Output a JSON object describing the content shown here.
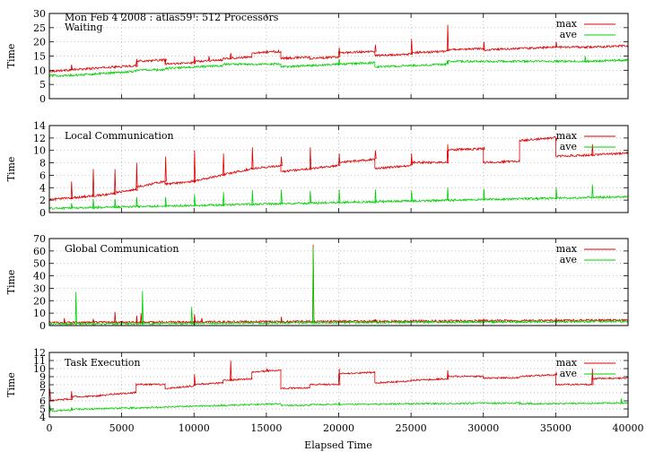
{
  "page": {
    "header": "Mon Feb 4 2008 : atlas59 : 512 Processors",
    "xlabel": "Elapsed Time"
  },
  "colors": {
    "max": "#e00000",
    "ave": "#00d000"
  },
  "chart_data": [
    {
      "type": "line",
      "title": "Waiting",
      "ylabel": "Time",
      "xlim": [
        0,
        40000
      ],
      "ylim": [
        0,
        30
      ],
      "yticks": [
        0,
        5,
        10,
        15,
        20,
        25,
        30
      ],
      "xticks": [
        0,
        5000,
        10000,
        15000,
        20000,
        25000,
        30000,
        35000,
        40000
      ],
      "legend": "top-right",
      "series": [
        {
          "name": "max",
          "segments": [
            [
              0,
              1500,
              9.5,
              10
            ],
            [
              1500,
              3000,
              10,
              10.5
            ],
            [
              3000,
              4500,
              10.5,
              11
            ],
            [
              4500,
              6000,
              11,
              11.5
            ],
            [
              6000,
              8000,
              13,
              13.5
            ],
            [
              8000,
              10000,
              12,
              12.5
            ],
            [
              10000,
              12000,
              13,
              13.5
            ],
            [
              12000,
              14000,
              14,
              14.5
            ],
            [
              14000,
              16000,
              16,
              16.5
            ],
            [
              16000,
              18000,
              14,
              14.5
            ],
            [
              18000,
              20000,
              14,
              14.5
            ],
            [
              20000,
              22500,
              16,
              16.5
            ],
            [
              22500,
              25000,
              15,
              15.5
            ],
            [
              25000,
              27500,
              16,
              16.5
            ],
            [
              27500,
              30000,
              17,
              17.5
            ],
            [
              30000,
              32500,
              17,
              17.5
            ],
            [
              32500,
              35000,
              17.5,
              18
            ],
            [
              35000,
              37500,
              18,
              18
            ],
            [
              37500,
              40000,
              18,
              18.5
            ]
          ],
          "spikes": [
            [
              27500,
              26
            ],
            [
              25000,
              21
            ],
            [
              22500,
              19
            ],
            [
              20000,
              18
            ],
            [
              15000,
              17
            ],
            [
              12500,
              16
            ],
            [
              11000,
              15
            ],
            [
              10000,
              15
            ],
            [
              30000,
              20
            ],
            [
              35000,
              20
            ],
            [
              1500,
              12
            ],
            [
              6000,
              14
            ],
            [
              8000,
              13
            ]
          ]
        },
        {
          "name": "ave",
          "segments": [
            [
              0,
              1500,
              8,
              8
            ],
            [
              1500,
              3000,
              8,
              8.5
            ],
            [
              3000,
              4500,
              8.5,
              9
            ],
            [
              4500,
              6000,
              9,
              9.5
            ],
            [
              6000,
              8000,
              10,
              10
            ],
            [
              8000,
              10000,
              10.5,
              11
            ],
            [
              10000,
              12000,
              11,
              11.5
            ],
            [
              12000,
              14000,
              12,
              12
            ],
            [
              14000,
              16000,
              12,
              12
            ],
            [
              16000,
              18000,
              11,
              11.5
            ],
            [
              18000,
              20000,
              11.5,
              12
            ],
            [
              20000,
              22500,
              12,
              12.5
            ],
            [
              22500,
              25000,
              11,
              11.5
            ],
            [
              25000,
              27500,
              11.5,
              12
            ],
            [
              27500,
              30000,
              13,
              13
            ],
            [
              30000,
              32500,
              13,
              13
            ],
            [
              32500,
              35000,
              13,
              13
            ],
            [
              35000,
              37500,
              13,
              13
            ],
            [
              37500,
              40000,
              13,
              13.5
            ]
          ],
          "spikes": [
            [
              20000,
              14
            ],
            [
              27500,
              13.5
            ],
            [
              37000,
              15
            ]
          ]
        }
      ]
    },
    {
      "type": "line",
      "title": "Local Communication",
      "ylabel": "Time",
      "xlim": [
        0,
        40000
      ],
      "ylim": [
        0,
        14
      ],
      "yticks": [
        0,
        2,
        4,
        6,
        8,
        10,
        12,
        14
      ],
      "xticks": [
        0,
        5000,
        10000,
        15000,
        20000,
        25000,
        30000,
        35000,
        40000
      ],
      "legend": "top-right",
      "series": [
        {
          "name": "max",
          "segments": [
            [
              0,
              1500,
              2,
              2.3
            ],
            [
              1500,
              3000,
              2.3,
              2.6
            ],
            [
              3000,
              4500,
              2.6,
              3
            ],
            [
              4500,
              6000,
              3.2,
              3.6
            ],
            [
              6000,
              8000,
              4,
              5
            ],
            [
              8000,
              10000,
              4.5,
              5
            ],
            [
              10000,
              12000,
              5,
              6
            ],
            [
              12000,
              14000,
              6,
              7
            ],
            [
              14000,
              16000,
              7,
              7.5
            ],
            [
              16000,
              18000,
              6.5,
              7
            ],
            [
              18000,
              20000,
              7,
              7.5
            ],
            [
              20000,
              22500,
              8,
              8.5
            ],
            [
              22500,
              25000,
              7,
              7.5
            ],
            [
              25000,
              27500,
              8,
              8
            ],
            [
              27500,
              30000,
              10,
              10.2
            ],
            [
              30000,
              32500,
              8,
              8.2
            ],
            [
              32500,
              35000,
              11.5,
              12
            ],
            [
              35000,
              37500,
              9,
              9.2
            ],
            [
              37500,
              40000,
              9.2,
              9.5
            ]
          ],
          "spikes": [
            [
              1500,
              5
            ],
            [
              3000,
              7
            ],
            [
              4500,
              7
            ],
            [
              6000,
              8
            ],
            [
              8000,
              9
            ],
            [
              10000,
              10
            ],
            [
              12000,
              9.5
            ],
            [
              14000,
              10.5
            ],
            [
              16000,
              9
            ],
            [
              18000,
              10.5
            ],
            [
              20000,
              9.5
            ],
            [
              22500,
              10
            ],
            [
              25000,
              9.5
            ],
            [
              27500,
              11
            ],
            [
              30000,
              10.5
            ],
            [
              35000,
              11.5
            ],
            [
              37500,
              11
            ]
          ]
        },
        {
          "name": "ave",
          "segments": [
            [
              0,
              40000,
              0.6,
              2.5
            ]
          ],
          "spikes": [
            [
              1500,
              1.5
            ],
            [
              3000,
              2.2
            ],
            [
              4500,
              2.2
            ],
            [
              6000,
              2.5
            ],
            [
              8000,
              2.5
            ],
            [
              10000,
              2.9
            ],
            [
              12000,
              3.3
            ],
            [
              14000,
              3.6
            ],
            [
              16000,
              3.7
            ],
            [
              18000,
              3.5
            ],
            [
              20000,
              3.7
            ],
            [
              22500,
              3.7
            ],
            [
              25000,
              3.5
            ],
            [
              27500,
              4
            ],
            [
              30000,
              3.8
            ],
            [
              35000,
              4
            ],
            [
              37500,
              4.5
            ]
          ]
        }
      ]
    },
    {
      "type": "line",
      "title": "Global Communication",
      "ylabel": "Time",
      "xlim": [
        0,
        40000
      ],
      "ylim": [
        0,
        70
      ],
      "yticks": [
        0,
        10,
        20,
        30,
        40,
        50,
        60,
        70
      ],
      "xticks": [
        0,
        5000,
        10000,
        15000,
        20000,
        25000,
        30000,
        35000,
        40000
      ],
      "legend": "top-right",
      "series": [
        {
          "name": "max",
          "segments": [
            [
              0,
              40000,
              2,
              4
            ]
          ],
          "spikes": [
            [
              1000,
              6
            ],
            [
              3000,
              5
            ],
            [
              4500,
              11
            ],
            [
              6000,
              8
            ],
            [
              6300,
              10
            ],
            [
              10000,
              9
            ],
            [
              10500,
              6
            ],
            [
              16000,
              7
            ],
            [
              18200,
              65
            ],
            [
              22500,
              5
            ],
            [
              30000,
              5
            ],
            [
              35000,
              6
            ]
          ]
        },
        {
          "name": "ave",
          "segments": [
            [
              0,
              40000,
              1,
              3
            ]
          ],
          "spikes": [
            [
              1800,
              27
            ],
            [
              6400,
              28
            ],
            [
              9800,
              15
            ],
            [
              18200,
              63
            ]
          ]
        }
      ]
    },
    {
      "type": "line",
      "title": "Task Execution",
      "ylabel": "Time",
      "xlim": [
        0,
        40000
      ],
      "ylim": [
        4,
        12
      ],
      "yticks": [
        4,
        5,
        6,
        7,
        8,
        9,
        10,
        11,
        12
      ],
      "xticks": [
        0,
        5000,
        10000,
        15000,
        20000,
        25000,
        30000,
        35000,
        40000
      ],
      "legend": "top-right",
      "series": [
        {
          "name": "max",
          "segments": [
            [
              0,
              1500,
              6,
              6.2
            ],
            [
              1500,
              3000,
              6.5,
              6.5
            ],
            [
              3000,
              4500,
              6.5,
              6.8
            ],
            [
              4500,
              6000,
              6.8,
              7
            ],
            [
              6000,
              8000,
              8,
              8
            ],
            [
              8000,
              10000,
              7.5,
              7.8
            ],
            [
              10000,
              12000,
              8,
              8.2
            ],
            [
              12000,
              14000,
              8.5,
              8.7
            ],
            [
              14000,
              16000,
              9.5,
              9.8
            ],
            [
              16000,
              18000,
              7.5,
              7.6
            ],
            [
              18000,
              20000,
              8,
              8
            ],
            [
              20000,
              22500,
              9.3,
              9.5
            ],
            [
              22500,
              25000,
              8.2,
              8.4
            ],
            [
              25000,
              27500,
              8.5,
              8.7
            ],
            [
              27500,
              30000,
              9,
              9
            ],
            [
              30000,
              32500,
              8.8,
              8.8
            ],
            [
              32500,
              35000,
              9,
              9.2
            ],
            [
              35000,
              37500,
              8,
              8
            ],
            [
              37500,
              40000,
              8.7,
              8.8
            ]
          ],
          "spikes": [
            [
              0,
              7.5
            ],
            [
              12500,
              11
            ],
            [
              1500,
              7.2
            ],
            [
              10000,
              9.3
            ],
            [
              15000,
              10
            ],
            [
              20000,
              10
            ],
            [
              27500,
              9.8
            ],
            [
              35000,
              9.5
            ],
            [
              37500,
              10
            ]
          ]
        },
        {
          "name": "ave",
          "segments": [
            [
              0,
              1500,
              4.7,
              4.8
            ],
            [
              1500,
              8000,
              4.9,
              5.2
            ],
            [
              8000,
              16000,
              5.2,
              5.6
            ],
            [
              16000,
              18000,
              5.4,
              5.4
            ],
            [
              18000,
              25000,
              5.5,
              5.6
            ],
            [
              25000,
              32500,
              5.6,
              5.7
            ],
            [
              32500,
              40000,
              5.6,
              5.7
            ]
          ],
          "spikes": [
            [
              0,
              5.5
            ],
            [
              1500,
              5.2
            ],
            [
              20000,
              5.8
            ],
            [
              39500,
              6.3
            ]
          ]
        }
      ]
    }
  ]
}
